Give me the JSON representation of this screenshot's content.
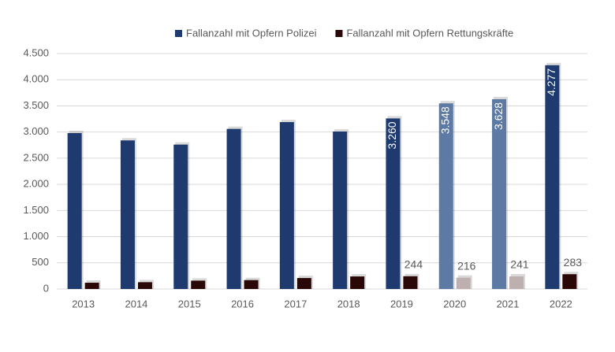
{
  "chart_data": {
    "type": "bar",
    "categories": [
      "2013",
      "2014",
      "2015",
      "2016",
      "2017",
      "2018",
      "2019",
      "2020",
      "2021",
      "2022"
    ],
    "series": [
      {
        "name": "Fallanzahl mit Opfern Polizei",
        "color": "#1f3a6e",
        "colors": [
          "#1f3a6e",
          "#1f3a6e",
          "#1f3a6e",
          "#1f3a6e",
          "#1f3a6e",
          "#1f3a6e",
          "#1f3a6e",
          "#5d7aa4",
          "#5d7aa4",
          "#1f3a6e"
        ],
        "values": [
          2980,
          2840,
          2760,
          3060,
          3190,
          3010,
          3260,
          3548,
          3628,
          4277
        ],
        "value_labels": [
          null,
          null,
          null,
          null,
          null,
          null,
          "3.260",
          "3.548",
          "3.628",
          "4.277"
        ]
      },
      {
        "name": "Fallanzahl mit Opfern Rettungskräfte",
        "color": "#2a0808",
        "colors": [
          "#2a0808",
          "#2a0808",
          "#2a0808",
          "#2a0808",
          "#2a0808",
          "#2a0808",
          "#2a0808",
          "#bfb0b0",
          "#bfb0b0",
          "#2a0808"
        ],
        "values": [
          120,
          130,
          160,
          170,
          210,
          240,
          244,
          216,
          241,
          283
        ],
        "value_labels": [
          null,
          null,
          null,
          null,
          null,
          null,
          "244",
          "216",
          "241",
          "283"
        ]
      }
    ],
    "ylim": [
      0,
      4500
    ],
    "yticks": [
      0,
      500,
      {
        "value": 1000,
        "label": "1.000"
      },
      {
        "value": 1500,
        "label": "1.500"
      },
      {
        "value": 2000,
        "label": "2.000"
      },
      {
        "value": 2500,
        "label": "2.500"
      },
      {
        "value": 3000,
        "label": "3.000"
      },
      {
        "value": 3500,
        "label": "3.500"
      },
      {
        "value": 4000,
        "label": "4.000"
      },
      {
        "value": 4500,
        "label": "4.500"
      }
    ],
    "grid": true,
    "legend": "top"
  }
}
